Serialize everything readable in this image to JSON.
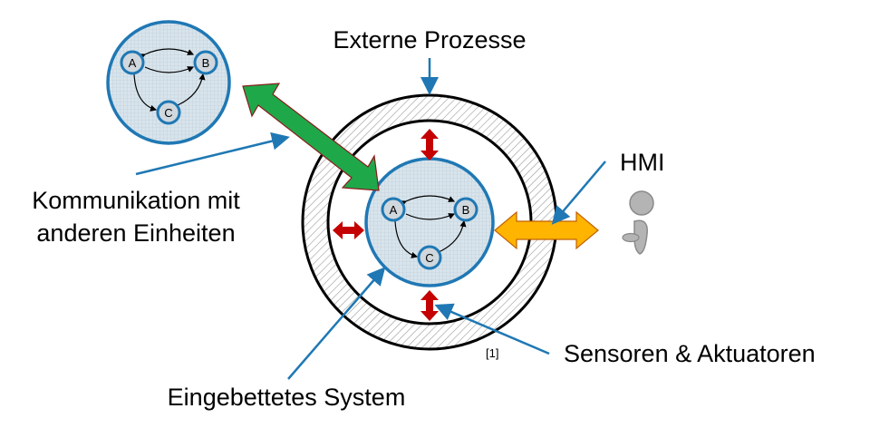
{
  "labels": {
    "externe_prozesse": "Externe Prozesse",
    "hmi": "HMI",
    "kommunikation_line1": "Kommunikation mit",
    "kommunikation_line2": "anderen Einheiten",
    "eingebettetes_system": "Eingebettetes System",
    "sensoren_aktuatoren": "Sensoren & Aktuatoren",
    "reference": "[1]"
  },
  "nodes": {
    "a": "A",
    "b": "B",
    "c": "C"
  },
  "colors": {
    "pointer_blue": "#1f78b4",
    "circle_fill": "#cfe3ef",
    "comm_arrow": "#1fa84a",
    "hmi_arrow": "#ffb400",
    "sensor_arrow": "#c40000",
    "person": "#b4b4b4"
  }
}
